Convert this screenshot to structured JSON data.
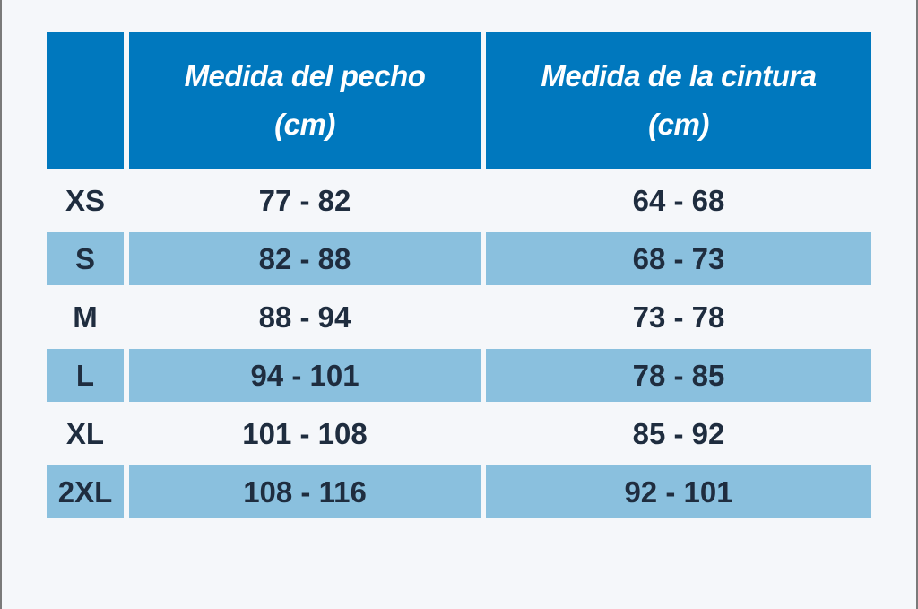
{
  "table": {
    "headers": {
      "size": "",
      "chest_line1": "Medida del pecho",
      "chest_line2": "(cm)",
      "waist_line1": "Medida de la cintura",
      "waist_line2": "(cm)"
    },
    "rows": [
      {
        "size": "XS",
        "chest": "77 - 82",
        "waist": "64 - 68"
      },
      {
        "size": "S",
        "chest": "82 - 88",
        "waist": "68 - 73"
      },
      {
        "size": "M",
        "chest": "88 - 94",
        "waist": "73 - 78"
      },
      {
        "size": "L",
        "chest": "94 - 101",
        "waist": "78 - 85"
      },
      {
        "size": "XL",
        "chest": "101 - 108",
        "waist": "85 - 92"
      },
      {
        "size": "2XL",
        "chest": "108 - 116",
        "waist": "92 - 101"
      }
    ]
  },
  "colors": {
    "header_bg": "#0078be",
    "shaded_row_bg": "#8ac0de",
    "page_bg": "#f5f7fa",
    "text": "#1f2d3f"
  }
}
